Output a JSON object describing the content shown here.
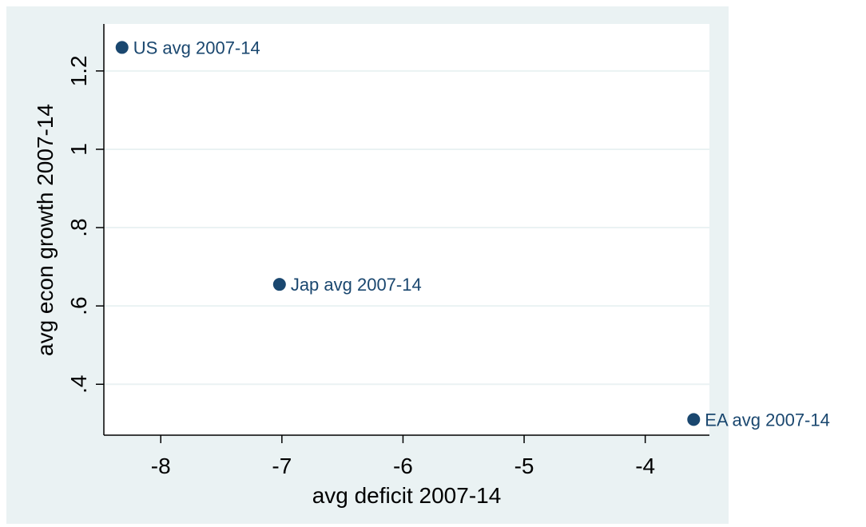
{
  "chart_data": {
    "type": "scatter",
    "title": "",
    "xlabel": "avg deficit 2007-14",
    "ylabel": "avg econ growth 2007-14",
    "xlim": [
      -8.47,
      -3.47
    ],
    "ylim": [
      0.27,
      1.32
    ],
    "xticks": [
      -8,
      -7,
      -6,
      -5,
      -4
    ],
    "xtick_labels": [
      "-8",
      "-7",
      "-6",
      "-5",
      "-4"
    ],
    "yticks": [
      0.4,
      0.6,
      0.8,
      1.0,
      1.2
    ],
    "ytick_labels": [
      ".4",
      ".6",
      ".8",
      "1",
      "1.2"
    ],
    "grid": "horizontal",
    "points": [
      {
        "x": -8.32,
        "y": 1.26,
        "label": "US avg 2007-14"
      },
      {
        "x": -7.02,
        "y": 0.655,
        "label": "Jap avg 2007-14"
      },
      {
        "x": -3.6,
        "y": 0.31,
        "label": "EA avg 2007-14"
      }
    ],
    "colors": {
      "marker": "#1a476f",
      "label": "#1a476f",
      "plot_bg": "#ffffff",
      "outer_bg": "#eaf2f3",
      "grid": "#eaf2f3"
    }
  }
}
